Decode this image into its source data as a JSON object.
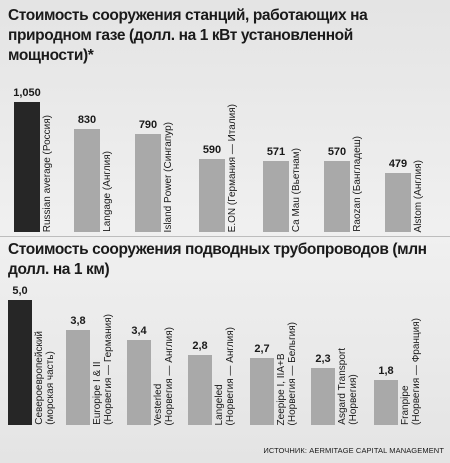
{
  "chart_data": [
    {
      "type": "bar",
      "title": "Стоимость сооружения станций, работающих на природном газе (долл. на 1 кВт установленной мощности)*",
      "categories": [
        "Russian average (Россия)",
        "Langage (Англия)",
        "Island Power (Сингапур)",
        "E.ON (Германия — Италия)",
        "Ca Mau (Вьетнам)",
        "Raozan (Бангладеш)",
        "Alstom (Англия)"
      ],
      "values": [
        1050,
        830,
        790,
        590,
        571,
        570,
        479
      ],
      "value_labels": [
        "1,050",
        "830",
        "790",
        "590",
        "571",
        "570",
        "479"
      ],
      "colors": [
        "#262626",
        "#a9a9a9",
        "#a9a9a9",
        "#a9a9a9",
        "#a9a9a9",
        "#a9a9a9",
        "#a9a9a9"
      ]
    },
    {
      "type": "bar",
      "title": "Стоимость сооружения подводных трубопроводов (млн долл. на 1 км)",
      "categories": [
        "Североевропейский\n(морская часть)",
        "Europipe I & II\n(Норвегия — Германия)",
        "Vesterled\n(Норвегия — Англия)",
        "Langeled\n(Норвегия — Англия)",
        "Zeepipe I, IIA+B\n(Норвегия — Бельгия)",
        "Asgard Transport\n(Норвегия)",
        "Franpipe\n(Норвегия — Франция)"
      ],
      "values": [
        5.0,
        3.8,
        3.4,
        2.8,
        2.7,
        2.3,
        1.8
      ],
      "value_labels": [
        "5,0",
        "3,8",
        "3,4",
        "2,8",
        "2,7",
        "2,3",
        "1,8"
      ],
      "colors": [
        "#262626",
        "#a9a9a9",
        "#a9a9a9",
        "#a9a9a9",
        "#a9a9a9",
        "#a9a9a9",
        "#a9a9a9"
      ]
    }
  ],
  "source": "ИСТОЧНИК: AERMITAGE CAPITAL MANAGEMENT"
}
